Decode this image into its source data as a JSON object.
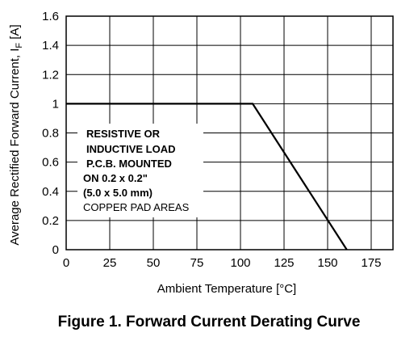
{
  "figure_caption": "Figure 1. Forward Current Derating Curve",
  "chart_data": {
    "type": "line",
    "title": "",
    "xlabel": "Ambient Temperature [°C]",
    "ylabel_main": "Average Rectified Forward Current, I",
    "ylabel_sub": "F",
    "ylabel_unit": " [A]",
    "xlim": [
      0,
      187.5
    ],
    "ylim": [
      0,
      1.6
    ],
    "xticks": [
      0,
      25,
      50,
      75,
      100,
      125,
      150,
      175
    ],
    "yticks": [
      0,
      0.2,
      0.4,
      0.6,
      0.8,
      1,
      1.2,
      1.4,
      1.6
    ],
    "xtick_labels": [
      "0",
      "25",
      "50",
      "75",
      "100",
      "125",
      "150",
      "175"
    ],
    "ytick_labels": [
      "0",
      "0.2",
      "0.4",
      "0.6",
      "0.8",
      "1",
      "1.2",
      "1.4",
      "1.6"
    ],
    "grid": true,
    "series": [
      {
        "x": [
          0,
          107,
          161
        ],
        "y": [
          1,
          1,
          0
        ],
        "color": "#000000"
      }
    ],
    "annotation_bold": [
      "RESISTIVE OR",
      "INDUCTIVE LOAD",
      "P.C.B. MOUNTED",
      "ON 0.2 x 0.2\"",
      "(5.0 x 5.0 mm)"
    ],
    "annotation_normal": "COPPER PAD AREAS"
  }
}
